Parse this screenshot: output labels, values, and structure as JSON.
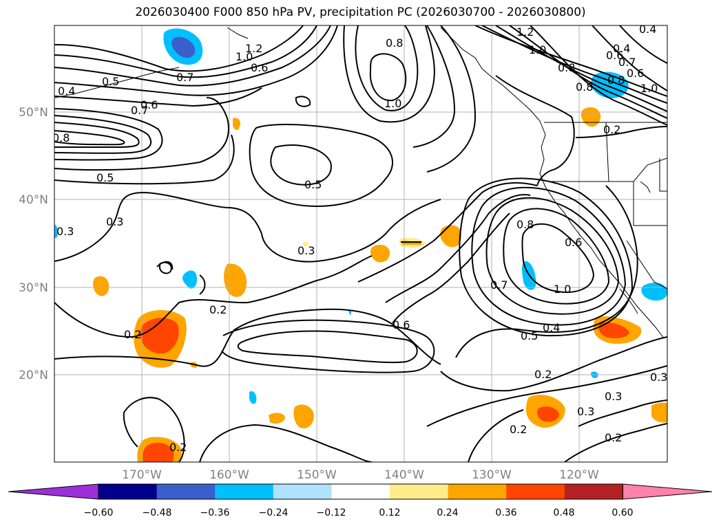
{
  "title": "2026030400 F000 850 hPa PV, precipitation PC (2026030700 - 2026030800)",
  "lat_labels": [
    "50°N",
    "40°N",
    "30°N",
    "20°N"
  ],
  "lon_labels": [
    "170°W",
    "160°W",
    "150°W",
    "140°W",
    "130°W",
    "120°W"
  ],
  "contour_labels": [
    "1.2",
    "0.4",
    "0.8",
    "1.0",
    "0.7",
    "0.8",
    "1.0",
    "0.6",
    "0.8",
    "0.6",
    "0.4",
    "0.5",
    "0.4",
    "0.6",
    "0.7",
    "0.8",
    "1.0",
    "0.2",
    "0.5",
    "0.5",
    "0.3",
    "0.3",
    "0.3",
    "0.3",
    "0.2",
    "0.2",
    "0.8",
    "0.6",
    "0.7",
    "1.0",
    "0.6",
    "0.5",
    "0.4",
    "0.2",
    "0.3",
    "0.3",
    "0.2",
    "0.2",
    "0.2",
    "1.0",
    "1.2",
    "0.7",
    "0.6",
    "0.8"
  ],
  "colorbar": {
    "ticks": [
      "−0.60",
      "−0.48",
      "−0.36",
      "−0.24",
      "−0.12",
      "0.12",
      "0.24",
      "0.36",
      "0.48",
      "0.60"
    ],
    "colors": [
      "#9b30d9",
      "#00008b",
      "#3a5fcd",
      "#00bfff",
      "#b0e2ff",
      "#ffffff",
      "#ffec8b",
      "#ffa500",
      "#ff4500",
      "#b22222",
      "#ff82ab"
    ]
  }
}
